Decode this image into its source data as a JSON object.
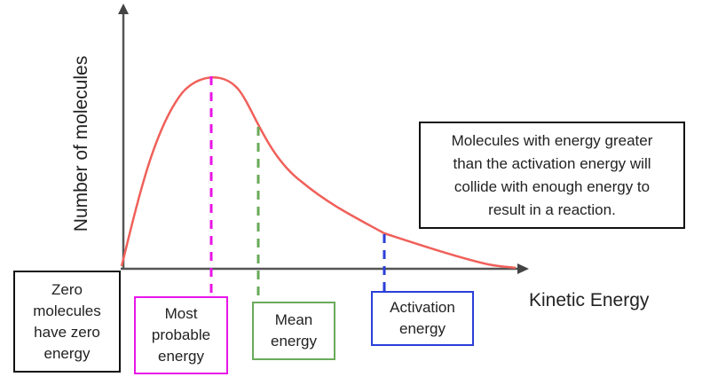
{
  "diagram": {
    "axes": {
      "x_label": "Kinetic Energy",
      "y_label": "Number of molecules"
    },
    "curve": {
      "color": "#f0605a"
    },
    "markers": [
      {
        "id": "most_probable",
        "color": "#e815e8"
      },
      {
        "id": "mean",
        "color": "#6aaa5a"
      },
      {
        "id": "activation",
        "color": "#2a3fd8"
      }
    ],
    "info_box": {
      "lines": [
        "Molecules with energy greater",
        "than the activation energy will",
        "collide with enough energy to",
        "result in a reaction."
      ]
    },
    "zero_box": {
      "lines": [
        "Zero",
        "molecules",
        "have zero",
        "energy"
      ]
    },
    "most_probable_box": {
      "lines": [
        "Most",
        "probable",
        "energy"
      ],
      "color": "#e815e8"
    },
    "mean_box": {
      "lines": [
        "Mean",
        "energy"
      ],
      "color": "#6aaa5a"
    },
    "activation_box": {
      "lines": [
        "Activation",
        "energy"
      ],
      "color": "#2a3fd8"
    }
  }
}
